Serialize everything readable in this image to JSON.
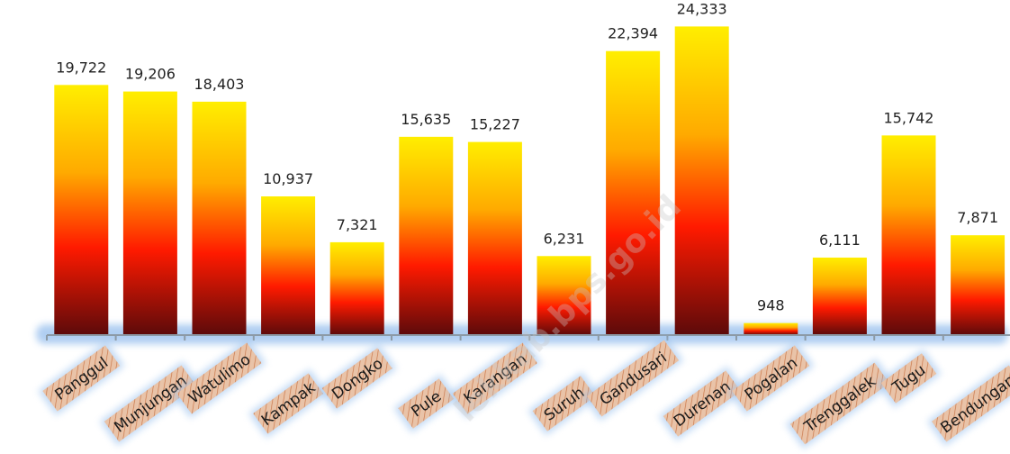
{
  "watermark": "lekkab.bps.go.id",
  "chart_data": {
    "type": "bar",
    "title": "",
    "xlabel": "",
    "ylabel": "",
    "categories": [
      "Panggul",
      "Munjungan",
      "Watulimo",
      "Kampak",
      "Dongko",
      "Pule",
      "Karangan",
      "Suruh",
      "Gandusari",
      "Durenan",
      "Pogalan",
      "Trenggalek",
      "Tugu",
      "Bendungan"
    ],
    "values": [
      19722,
      19206,
      18403,
      10937,
      7321,
      15635,
      15227,
      6231,
      22394,
      24333,
      948,
      6111,
      15742,
      7871
    ],
    "value_labels": [
      "19,722",
      "19,206",
      "18,403",
      "10,937",
      "7,321",
      "15,635",
      "15,227",
      "6,231",
      "22,394",
      "24,333",
      "948",
      "6,111",
      "15,742",
      "7,871"
    ],
    "ylim": [
      0,
      25000
    ],
    "grid": false,
    "legend": "none",
    "bar_gradient": [
      "#ffee00",
      "#ffaa00",
      "#ff1a00",
      "#5c0a0a"
    ],
    "label_tile_color": "#e9c3a8",
    "label_glow_color": "#9cc2ee"
  }
}
